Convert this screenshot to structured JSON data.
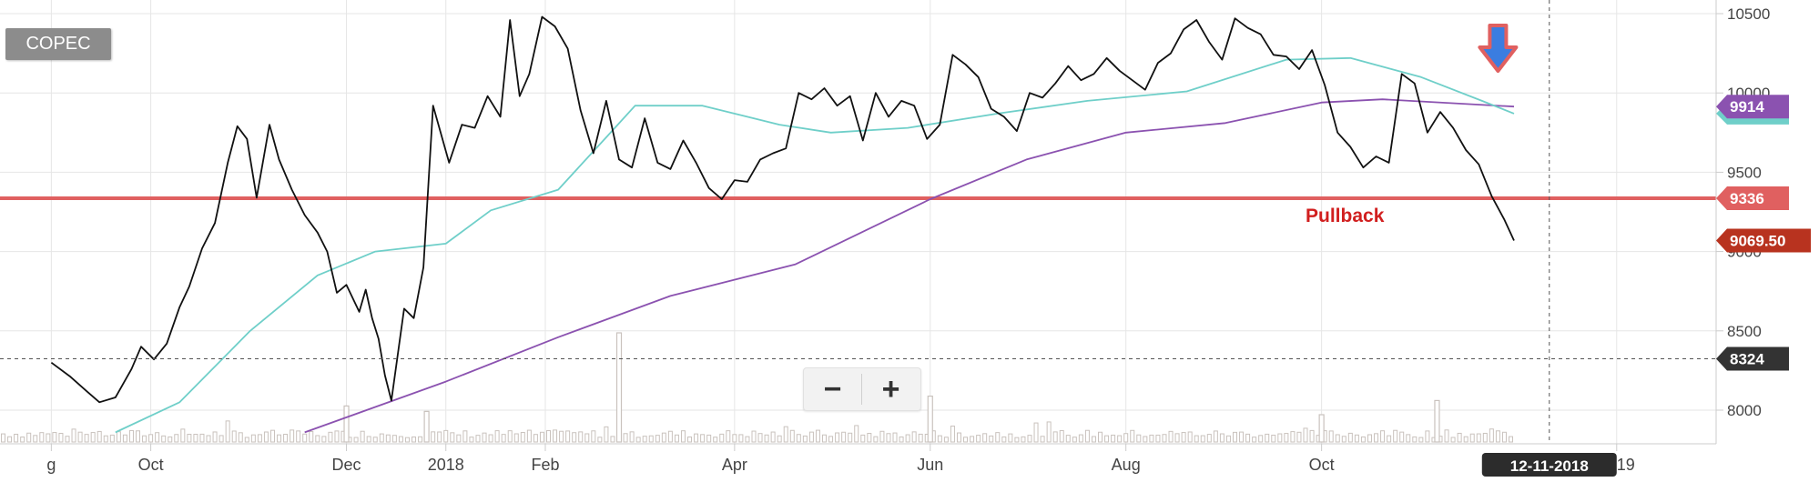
{
  "symbol": "COPEC",
  "zoom": {
    "zoom_out_label": "−",
    "zoom_in_label": "+"
  },
  "annotation": "Pullback",
  "cursor_date_label": "12-11-2018",
  "colors": {
    "price": "#111111",
    "sma_short": "#6fcfc9",
    "sma_long": "#8b52b0",
    "support": "#e06060",
    "volume": "#c9c2bd",
    "annotation": "#d11f1f",
    "arrow_fill": "#3b7de0",
    "arrow_outline": "#e06060",
    "grid": "#e6e6e6"
  },
  "icons": {
    "signal_arrow": "down-arrow-icon"
  },
  "chart_data": {
    "type": "line",
    "x_start": "2017-08-15",
    "x_end": "2019-02-01",
    "ylim": [
      7850,
      10600
    ],
    "y_ticks": [
      8000,
      8500,
      9000,
      9500,
      10000,
      10500
    ],
    "x_ticks": [
      {
        "label": "g",
        "date": "2017-08-31"
      },
      {
        "label": "Oct",
        "date": "2017-10-01"
      },
      {
        "label": "Dec",
        "date": "2017-12-01"
      },
      {
        "label": "2018",
        "date": "2018-01-01"
      },
      {
        "label": "Feb",
        "date": "2018-02-01"
      },
      {
        "label": "Apr",
        "date": "2018-04-01"
      },
      {
        "label": "Jun",
        "date": "2018-06-01"
      },
      {
        "label": "Aug",
        "date": "2018-08-01"
      },
      {
        "label": "Oct",
        "date": "2018-10-01"
      },
      {
        "label": "2019",
        "date": "2019-01-01"
      }
    ],
    "grid": true,
    "series": [
      {
        "role": "price",
        "points": [
          [
            "2017-08-31",
            8300
          ],
          [
            "2017-09-06",
            8210
          ],
          [
            "2017-09-11",
            8120
          ],
          [
            "2017-09-15",
            8050
          ],
          [
            "2017-09-20",
            8080
          ],
          [
            "2017-09-25",
            8260
          ],
          [
            "2017-09-28",
            8400
          ],
          [
            "2017-10-02",
            8320
          ],
          [
            "2017-10-06",
            8420
          ],
          [
            "2017-10-10",
            8650
          ],
          [
            "2017-10-13",
            8780
          ],
          [
            "2017-10-17",
            9020
          ],
          [
            "2017-10-21",
            9180
          ],
          [
            "2017-10-25",
            9560
          ],
          [
            "2017-10-28",
            9790
          ],
          [
            "2017-10-31",
            9710
          ],
          [
            "2017-11-03",
            9340
          ],
          [
            "2017-11-07",
            9800
          ],
          [
            "2017-11-10",
            9580
          ],
          [
            "2017-11-14",
            9390
          ],
          [
            "2017-11-18",
            9230
          ],
          [
            "2017-11-22",
            9120
          ],
          [
            "2017-11-25",
            9000
          ],
          [
            "2017-11-28",
            8740
          ],
          [
            "2017-12-01",
            8790
          ],
          [
            "2017-12-05",
            8620
          ],
          [
            "2017-12-07",
            8760
          ],
          [
            "2017-12-09",
            8580
          ],
          [
            "2017-12-11",
            8450
          ],
          [
            "2017-12-13",
            8220
          ],
          [
            "2017-12-15",
            8060
          ],
          [
            "2017-12-19",
            8640
          ],
          [
            "2017-12-22",
            8580
          ],
          [
            "2017-12-25",
            8900
          ],
          [
            "2017-12-28",
            9920
          ],
          [
            "2018-01-02",
            9560
          ],
          [
            "2018-01-06",
            9800
          ],
          [
            "2018-01-10",
            9780
          ],
          [
            "2018-01-14",
            9980
          ],
          [
            "2018-01-18",
            9850
          ],
          [
            "2018-01-21",
            10460
          ],
          [
            "2018-01-24",
            9980
          ],
          [
            "2018-01-27",
            10120
          ],
          [
            "2018-01-31",
            10480
          ],
          [
            "2018-02-04",
            10420
          ],
          [
            "2018-02-08",
            10280
          ],
          [
            "2018-02-12",
            9890
          ],
          [
            "2018-02-16",
            9620
          ],
          [
            "2018-02-20",
            9950
          ],
          [
            "2018-02-24",
            9580
          ],
          [
            "2018-02-28",
            9530
          ],
          [
            "2018-03-04",
            9840
          ],
          [
            "2018-03-08",
            9560
          ],
          [
            "2018-03-12",
            9520
          ],
          [
            "2018-03-16",
            9700
          ],
          [
            "2018-03-20",
            9560
          ],
          [
            "2018-03-24",
            9400
          ],
          [
            "2018-03-28",
            9330
          ],
          [
            "2018-04-01",
            9450
          ],
          [
            "2018-04-05",
            9440
          ],
          [
            "2018-04-09",
            9580
          ],
          [
            "2018-04-13",
            9620
          ],
          [
            "2018-04-17",
            9650
          ],
          [
            "2018-04-21",
            10000
          ],
          [
            "2018-04-25",
            9960
          ],
          [
            "2018-04-29",
            10030
          ],
          [
            "2018-05-03",
            9920
          ],
          [
            "2018-05-07",
            9980
          ],
          [
            "2018-05-11",
            9700
          ],
          [
            "2018-05-15",
            10000
          ],
          [
            "2018-05-19",
            9850
          ],
          [
            "2018-05-23",
            9950
          ],
          [
            "2018-05-27",
            9920
          ],
          [
            "2018-05-31",
            9710
          ],
          [
            "2018-06-04",
            9800
          ],
          [
            "2018-06-08",
            10240
          ],
          [
            "2018-06-12",
            10180
          ],
          [
            "2018-06-16",
            10100
          ],
          [
            "2018-06-20",
            9900
          ],
          [
            "2018-06-24",
            9850
          ],
          [
            "2018-06-28",
            9760
          ],
          [
            "2018-07-02",
            10000
          ],
          [
            "2018-07-06",
            9970
          ],
          [
            "2018-07-10",
            10060
          ],
          [
            "2018-07-14",
            10170
          ],
          [
            "2018-07-18",
            10080
          ],
          [
            "2018-07-22",
            10120
          ],
          [
            "2018-07-26",
            10220
          ],
          [
            "2018-07-30",
            10140
          ],
          [
            "2018-08-03",
            10080
          ],
          [
            "2018-08-07",
            10020
          ],
          [
            "2018-08-11",
            10190
          ],
          [
            "2018-08-15",
            10250
          ],
          [
            "2018-08-19",
            10400
          ],
          [
            "2018-08-23",
            10460
          ],
          [
            "2018-08-27",
            10320
          ],
          [
            "2018-08-31",
            10210
          ],
          [
            "2018-09-04",
            10470
          ],
          [
            "2018-09-08",
            10410
          ],
          [
            "2018-09-12",
            10370
          ],
          [
            "2018-09-16",
            10240
          ],
          [
            "2018-09-20",
            10230
          ],
          [
            "2018-09-24",
            10150
          ],
          [
            "2018-09-28",
            10270
          ],
          [
            "2018-10-02",
            10050
          ],
          [
            "2018-10-06",
            9750
          ],
          [
            "2018-10-10",
            9660
          ],
          [
            "2018-10-14",
            9530
          ],
          [
            "2018-10-18",
            9600
          ],
          [
            "2018-10-22",
            9560
          ],
          [
            "2018-10-26",
            10120
          ],
          [
            "2018-10-30",
            10060
          ],
          [
            "2018-11-03",
            9750
          ],
          [
            "2018-11-07",
            9880
          ],
          [
            "2018-11-11",
            9780
          ],
          [
            "2018-11-15",
            9640
          ],
          [
            "2018-11-19",
            9550
          ],
          [
            "2018-11-23",
            9350
          ],
          [
            "2018-11-27",
            9200
          ],
          [
            "2018-11-30",
            9069.5
          ]
        ]
      },
      {
        "role": "sma_short",
        "points": [
          [
            "2017-09-20",
            7860
          ],
          [
            "2017-10-10",
            8050
          ],
          [
            "2017-11-01",
            8500
          ],
          [
            "2017-11-22",
            8850
          ],
          [
            "2017-12-10",
            9000
          ],
          [
            "2018-01-01",
            9050
          ],
          [
            "2018-01-15",
            9260
          ],
          [
            "2018-02-05",
            9390
          ],
          [
            "2018-02-20",
            9720
          ],
          [
            "2018-03-01",
            9920
          ],
          [
            "2018-03-22",
            9920
          ],
          [
            "2018-04-15",
            9800
          ],
          [
            "2018-05-01",
            9750
          ],
          [
            "2018-05-25",
            9780
          ],
          [
            "2018-06-22",
            9870
          ],
          [
            "2018-07-20",
            9950
          ],
          [
            "2018-08-20",
            10010
          ],
          [
            "2018-09-20",
            10210
          ],
          [
            "2018-10-10",
            10220
          ],
          [
            "2018-11-01",
            10100
          ],
          [
            "2018-11-20",
            9950
          ],
          [
            "2018-11-30",
            9870
          ]
        ]
      },
      {
        "role": "sma_long",
        "points": [
          [
            "2017-11-18",
            7860
          ],
          [
            "2018-01-01",
            8180
          ],
          [
            "2018-02-05",
            8460
          ],
          [
            "2018-03-12",
            8720
          ],
          [
            "2018-04-20",
            8920
          ],
          [
            "2018-06-01",
            9330
          ],
          [
            "2018-07-01",
            9580
          ],
          [
            "2018-08-01",
            9750
          ],
          [
            "2018-09-01",
            9810
          ],
          [
            "2018-10-01",
            9940
          ],
          [
            "2018-10-20",
            9960
          ],
          [
            "2018-11-30",
            9914
          ]
        ]
      },
      {
        "role": "support",
        "points": [
          [
            "2017-08-15",
            9336
          ],
          [
            "2019-02-01",
            9336
          ]
        ]
      }
    ],
    "volume_note": "volume histogram along bottom; relative scale",
    "volume_spikes": [
      {
        "date": "2017-12-01",
        "value": 0.33
      },
      {
        "date": "2017-12-26",
        "value": 0.28
      },
      {
        "date": "2018-02-24",
        "value": 1.0
      },
      {
        "date": "2018-06-01",
        "value": 0.42
      },
      {
        "date": "2018-10-01",
        "value": 0.25
      },
      {
        "date": "2018-11-06",
        "value": 0.38
      }
    ],
    "price_labels": [
      {
        "label": "9914",
        "value": 9914,
        "color": "#8b52b0"
      },
      {
        "label": "9336",
        "value": 9336,
        "color": "#e06060"
      },
      {
        "label": "9069.50",
        "value": 9069.5,
        "color": "#b8331f"
      },
      {
        "label": "8324",
        "value": 8324,
        "color": "#333333"
      }
    ],
    "hidden_label_color": "#6fcfc9",
    "crosshair": {
      "date": "2018-12-11",
      "value": 8324
    },
    "signal_arrow_date": "2018-11-25"
  }
}
